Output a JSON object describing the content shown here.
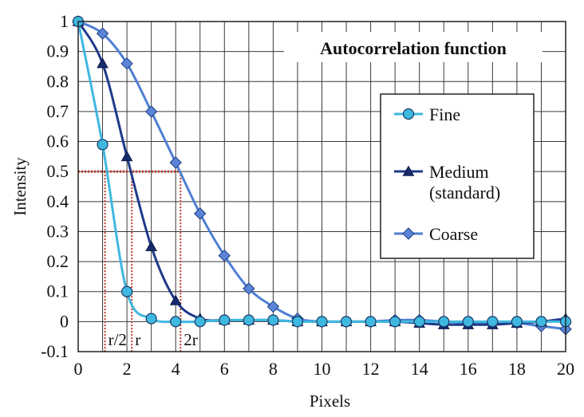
{
  "chart_data": {
    "type": "line",
    "title": "Autocorrelation function",
    "xlabel": "Pixels",
    "ylabel": "Intensity",
    "xlim": [
      0,
      20
    ],
    "ylim": [
      -0.1,
      1
    ],
    "x_ticks": [
      0,
      2,
      4,
      6,
      8,
      10,
      12,
      14,
      16,
      18,
      20
    ],
    "y_ticks": [
      -0.1,
      0,
      0.1,
      0.2,
      0.3,
      0.4,
      0.5,
      0.6,
      0.7,
      0.8,
      0.9,
      1
    ],
    "y_tick_labels": [
      "-0.1",
      "0",
      "0.1",
      "0.2",
      "0.3",
      "0.4",
      "0.5",
      "0.6",
      "0.7",
      "0.8",
      "0.9",
      "1"
    ],
    "grid": true,
    "legend_position": "right",
    "series": [
      {
        "name": "Fine",
        "marker": "circle",
        "color": "#3fb8e0",
        "marker_fill": "#3fb8e0",
        "x": [
          0,
          1,
          2,
          3,
          4,
          5,
          6,
          7,
          8,
          9,
          10,
          11,
          12,
          13,
          14,
          15,
          16,
          17,
          18,
          19,
          20
        ],
        "y": [
          1.0,
          0.59,
          0.1,
          0.01,
          0.0,
          0.0,
          0.005,
          0.005,
          0.005,
          0.0,
          0.0,
          0.0,
          0.0,
          0.0,
          0.0,
          0.0,
          0.0,
          0.0,
          0.0,
          0.0,
          0.0
        ]
      },
      {
        "name": "Medium (standard)",
        "legend_lines": [
          "Medium",
          "(standard)"
        ],
        "marker": "triangle",
        "color": "#1f3a8a",
        "marker_fill": "#172a6b",
        "x": [
          0,
          1,
          2,
          3,
          4,
          5,
          6,
          7,
          8,
          9,
          10,
          11,
          12,
          13,
          14,
          15,
          16,
          17,
          18,
          19,
          20
        ],
        "y": [
          1.0,
          0.86,
          0.55,
          0.25,
          0.07,
          0.01,
          0.005,
          0.005,
          0.005,
          0.0,
          0.0,
          0.0,
          0.0,
          0.0,
          -0.005,
          -0.01,
          -0.01,
          -0.01,
          -0.005,
          0.0,
          0.01
        ]
      },
      {
        "name": "Coarse",
        "marker": "diamond",
        "color": "#4f7fd3",
        "marker_fill": "#5b84d6",
        "x": [
          0,
          1,
          2,
          3,
          4,
          5,
          6,
          7,
          8,
          9,
          10,
          11,
          12,
          13,
          14,
          15,
          16,
          17,
          18,
          19,
          20
        ],
        "y": [
          1.0,
          0.96,
          0.86,
          0.7,
          0.53,
          0.36,
          0.22,
          0.11,
          0.05,
          0.01,
          0.0,
          0.0,
          0.0,
          0.005,
          0.005,
          0.0,
          -0.005,
          -0.005,
          -0.005,
          -0.015,
          -0.025
        ]
      }
    ],
    "reference_lines": {
      "color": "#c0392b",
      "level_y": 0.5,
      "level_x_end": 4.2,
      "verticals": [
        {
          "x": 1.1,
          "label": "r/2"
        },
        {
          "x": 2.2,
          "label": "r"
        },
        {
          "x": 4.2,
          "label": "2r"
        }
      ]
    }
  }
}
